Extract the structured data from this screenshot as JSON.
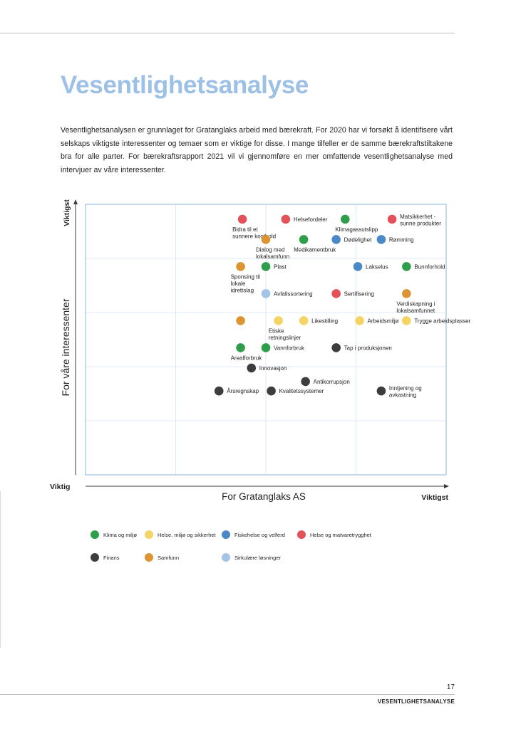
{
  "page": {
    "title": "Vesentlighetsanalyse",
    "intro": "Vesentlighetsanalysen er grunnlaget for Gratanglaks arbeid med bærekraft.  For 2020 har vi forsøkt å identifisere vårt selskaps viktigste interessenter og temaer som er viktige for disse. I mange tilfeller er de samme bærekraftstiltakene bra for alle parter. For bærekraftsrapport 2021 vil vi gjennomføre en mer omfattende vesentlighetsanalyse med intervjuer av våre interessenter.",
    "page_number": "17",
    "section_name": "VESENTLIGHETSANALYSE"
  },
  "chart_data": {
    "type": "scatter",
    "xlabel": "For Gratanglaks AS",
    "ylabel": "For våre interessenter",
    "x_low_label": "Viktig",
    "x_high_label": "Viktigst",
    "y_high_label": "Viktigst",
    "xlim": [
      0,
      10
    ],
    "ylim": [
      0,
      10
    ],
    "grid": true,
    "legend_position": "bottom",
    "categories": [
      {
        "key": "klima",
        "name": "Klima og miljø",
        "color": "#2e9e4a"
      },
      {
        "key": "hms",
        "name": "Helse, miljø og sikkerhet",
        "color": "#f5d466"
      },
      {
        "key": "fisk",
        "name": "Fiskehelse og velferd",
        "color": "#4a88c7"
      },
      {
        "key": "mat",
        "name": "Helse og matvaretrygghet",
        "color": "#e3525a"
      },
      {
        "key": "finans",
        "name": "Finans",
        "color": "#3d3d3d"
      },
      {
        "key": "samfunn",
        "name": "Samfunn",
        "color": "#dd9433"
      },
      {
        "key": "sirk",
        "name": "Sirkulære løsninger",
        "color": "#a3c4e6"
      }
    ],
    "points": [
      {
        "label": "Bidra til et sunnere kosthold",
        "cat": "mat",
        "x": 4.35,
        "y": 9.45,
        "pos": "below"
      },
      {
        "label": "Helsefordeler",
        "cat": "mat",
        "x": 5.55,
        "y": 9.45,
        "pos": "right"
      },
      {
        "label": "Klimagassutslipp",
        "cat": "klima",
        "x": 7.2,
        "y": 9.45,
        "pos": "below"
      },
      {
        "label": "Matsikkerhet - sunne produkter",
        "cat": "mat",
        "x": 8.5,
        "y": 9.45,
        "pos": "right"
      },
      {
        "label": "Dialog med lokalsamfunn",
        "cat": "samfunn",
        "x": 5.0,
        "y": 8.7,
        "pos": "below"
      },
      {
        "label": "Medikamentbruk",
        "cat": "klima",
        "x": 6.05,
        "y": 8.7,
        "pos": "below"
      },
      {
        "label": "Dødelighet",
        "cat": "fisk",
        "x": 6.95,
        "y": 8.7,
        "pos": "right"
      },
      {
        "label": "Rømming",
        "cat": "fisk",
        "x": 8.2,
        "y": 8.7,
        "pos": "right"
      },
      {
        "label": "Sponsing til lokale idrettslag",
        "cat": "samfunn",
        "x": 4.3,
        "y": 7.7,
        "pos": "below"
      },
      {
        "label": "Plast",
        "cat": "klima",
        "x": 5.0,
        "y": 7.7,
        "pos": "right"
      },
      {
        "label": "Lakselus",
        "cat": "fisk",
        "x": 7.55,
        "y": 7.7,
        "pos": "right"
      },
      {
        "label": "Bunnforhold",
        "cat": "klima",
        "x": 8.9,
        "y": 7.7,
        "pos": "right"
      },
      {
        "label": "Avfallssortering",
        "cat": "sirk",
        "x": 5.0,
        "y": 6.7,
        "pos": "right"
      },
      {
        "label": "Sertifisering",
        "cat": "mat",
        "x": 6.95,
        "y": 6.7,
        "pos": "right"
      },
      {
        "label": "Verdiskapning i lokalsamfunnet",
        "cat": "samfunn",
        "x": 8.9,
        "y": 6.7,
        "pos": "below"
      },
      {
        "label": "",
        "cat": "samfunn",
        "x": 4.3,
        "y": 5.7,
        "pos": "none"
      },
      {
        "label": "Etiske retningslinjer",
        "cat": "hms",
        "x": 5.35,
        "y": 5.7,
        "pos": "below"
      },
      {
        "label": "Likestilling",
        "cat": "hms",
        "x": 6.05,
        "y": 5.7,
        "pos": "right"
      },
      {
        "label": "Arbeidsmiljø",
        "cat": "hms",
        "x": 7.6,
        "y": 5.7,
        "pos": "right"
      },
      {
        "label": "Trygge arbeidsplasser",
        "cat": "hms",
        "x": 8.9,
        "y": 5.7,
        "pos": "right"
      },
      {
        "label": "Arealforbruk",
        "cat": "klima",
        "x": 4.3,
        "y": 4.7,
        "pos": "below"
      },
      {
        "label": "Vannforbruk",
        "cat": "klima",
        "x": 5.0,
        "y": 4.7,
        "pos": "right"
      },
      {
        "label": "Tap i produksjonen",
        "cat": "finans",
        "x": 6.95,
        "y": 4.7,
        "pos": "right"
      },
      {
        "label": "Innovasjon",
        "cat": "finans",
        "x": 4.6,
        "y": 3.95,
        "pos": "right"
      },
      {
        "label": "Antikorrupsjon",
        "cat": "finans",
        "x": 6.1,
        "y": 3.45,
        "pos": "right"
      },
      {
        "label": "Årsregnskap",
        "cat": "finans",
        "x": 3.7,
        "y": 3.1,
        "pos": "right"
      },
      {
        "label": "Kvalitetssystemer",
        "cat": "finans",
        "x": 5.15,
        "y": 3.1,
        "pos": "right"
      },
      {
        "label": "Inntjening og avkastning",
        "cat": "finans",
        "x": 8.2,
        "y": 3.1,
        "pos": "right"
      }
    ]
  }
}
